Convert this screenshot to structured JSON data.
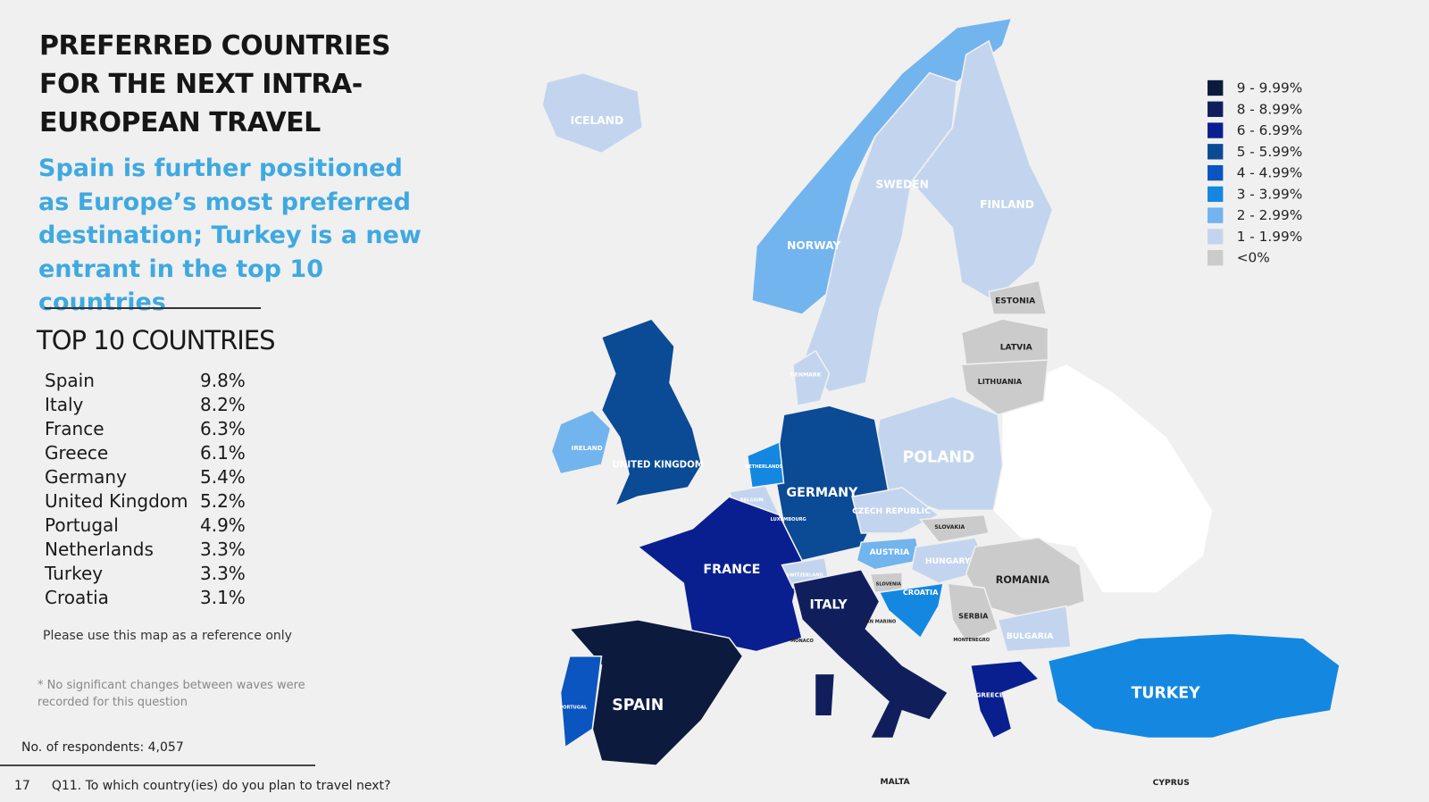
{
  "header": {
    "title": "PREFERRED COUNTRIES FOR THE NEXT INTRA-EUROPEAN TRAVEL",
    "subtitle": "Spain is further positioned as Europe’s most preferred destination; Turkey is a new entrant in the top 10 countries"
  },
  "top10": {
    "heading": "TOP 10 COUNTRIES",
    "rows": [
      [
        "Spain",
        "9.8%"
      ],
      [
        "Italy",
        "8.2%"
      ],
      [
        "France",
        "6.3%"
      ],
      [
        "Greece",
        "6.1%"
      ],
      [
        "Germany",
        "5.4%"
      ],
      [
        "United Kingdom",
        "5.2%"
      ],
      [
        "Portugal",
        "4.9%"
      ],
      [
        "Netherlands",
        "3.3%"
      ],
      [
        "Turkey",
        "3.3%"
      ],
      [
        "Croatia",
        "3.1%"
      ]
    ]
  },
  "notes": [
    "Please use this map as a reference only",
    "* No significant changes between waves were recorded for this question"
  ],
  "respondents": "No. of respondents: 4,057",
  "footer": {
    "page": "17",
    "question": "Q11. To which country(ies) do you plan to travel next?"
  },
  "legend": [
    {
      "label": "9 - 9.99%",
      "color": "#0c1a3d"
    },
    {
      "label": "8 - 8.99%",
      "color": "#101f5c"
    },
    {
      "label": "6 - 6.99%",
      "color": "#0a1f8f"
    },
    {
      "label": "5 - 5.99%",
      "color": "#0b4a94"
    },
    {
      "label": "4 - 4.99%",
      "color": "#0a55c0"
    },
    {
      "label": "3 - 3.99%",
      "color": "#1488e0"
    },
    {
      "label": "2 - 2.99%",
      "color": "#72b4ee"
    },
    {
      "label": "1 - 1.99%",
      "color": "#c3d5ee"
    },
    {
      "label": "<0%",
      "color": "#cbcbcb"
    }
  ],
  "map": {
    "countries": [
      {
        "label": "ICELAND",
        "color": "#c3d5ee"
      },
      {
        "label": "NORWAY",
        "color": "#72b4ee"
      },
      {
        "label": "SWEDEN",
        "color": "#c3d5ee"
      },
      {
        "label": "FINLAND",
        "color": "#c3d5ee"
      },
      {
        "label": "DENMARK",
        "color": "#c3d5ee"
      },
      {
        "label": "UNITED KINGDOM",
        "color": "#0b4a94"
      },
      {
        "label": "IRELAND",
        "color": "#72b4ee"
      },
      {
        "label": "ESTONIA",
        "color": "#cbcbcb"
      },
      {
        "label": "LATVIA",
        "color": "#cbcbcb"
      },
      {
        "label": "LITHUANIA",
        "color": "#cbcbcb"
      },
      {
        "label": "POLAND",
        "color": "#c3d5ee"
      },
      {
        "label": "GERMANY",
        "color": "#0b4a94"
      },
      {
        "label": "NETHERLANDS",
        "color": "#1488e0"
      },
      {
        "label": "BELGIUM",
        "color": "#c3d5ee"
      },
      {
        "label": "FRANCE",
        "color": "#0a1f8f"
      },
      {
        "label": "SPAIN",
        "color": "#0c1a3d"
      },
      {
        "label": "PORTUGAL",
        "color": "#0a55c0"
      },
      {
        "label": "SWITZERLAND",
        "color": "#c3d5ee"
      },
      {
        "label": "AUSTRIA",
        "color": "#72b4ee"
      },
      {
        "label": "CZECH REPUBLIC",
        "color": "#c3d5ee"
      },
      {
        "label": "SLOVAKIA",
        "color": "#cbcbcb"
      },
      {
        "label": "HUNGARY",
        "color": "#c3d5ee"
      },
      {
        "label": "SLOVENIA",
        "color": "#cbcbcb"
      },
      {
        "label": "CROATIA",
        "color": "#1488e0"
      },
      {
        "label": "ROMANIA",
        "color": "#cbcbcb"
      },
      {
        "label": "SERBIA",
        "color": "#cbcbcb"
      },
      {
        "label": "BULGARIA",
        "color": "#c3d5ee"
      },
      {
        "label": "ITALY",
        "color": "#101f5c"
      },
      {
        "label": "GREECE",
        "color": "#0a1f8f"
      },
      {
        "label": "TURKEY",
        "color": "#1488e0"
      }
    ],
    "small_labels": [
      "LUXEMBOURG",
      "MONACO",
      "SAN MARINO",
      "MONTENEGRO",
      "MALTA",
      "CYPRUS"
    ]
  }
}
